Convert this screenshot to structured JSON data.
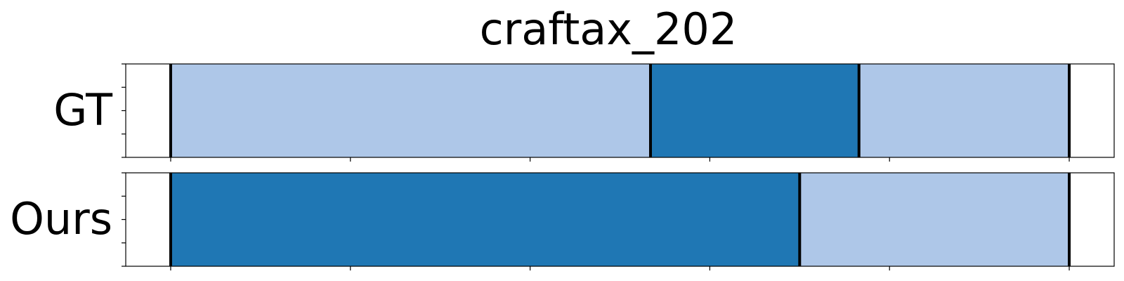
{
  "chart_data": {
    "type": "bar",
    "title": "craftax_202",
    "xlim": [
      -0.25,
      5.25
    ],
    "x_ticks": [
      0,
      1,
      2,
      3,
      4,
      5
    ],
    "colors": {
      "light": "#aec7e8",
      "dark": "#1f77b4",
      "boundary": "#000000"
    },
    "rows": [
      {
        "label": "GT",
        "segments": [
          {
            "start": 0.0,
            "end": 2.67,
            "color": "light"
          },
          {
            "start": 2.67,
            "end": 3.83,
            "color": "dark"
          },
          {
            "start": 3.83,
            "end": 5.0,
            "color": "light"
          }
        ]
      },
      {
        "label": "Ours",
        "segments": [
          {
            "start": 0.0,
            "end": 3.5,
            "color": "dark"
          },
          {
            "start": 3.5,
            "end": 5.0,
            "color": "light"
          }
        ]
      }
    ]
  }
}
